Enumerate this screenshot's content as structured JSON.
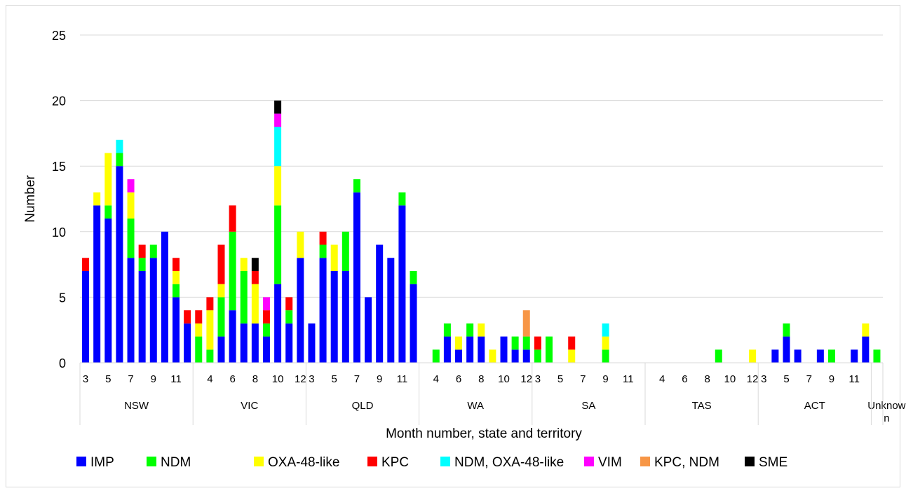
{
  "chart_data": {
    "type": "bar",
    "stacked": true,
    "ylabel": "Number",
    "xlabel": "Month number, state and territory",
    "ylim": [
      0,
      25
    ],
    "yticks": [
      0,
      5,
      10,
      15,
      20,
      25
    ],
    "grid": true,
    "legend_position": "bottom",
    "series": [
      {
        "name": "IMP",
        "color": "#0000ff"
      },
      {
        "name": "NDM",
        "color": "#00ff00"
      },
      {
        "name": "OXA-48-like",
        "color": "#ffff00"
      },
      {
        "name": "KPC",
        "color": "#ff0000"
      },
      {
        "name": "NDM, OXA-48-like",
        "color": "#00ffff"
      },
      {
        "name": "VIM",
        "color": "#ff00ff"
      },
      {
        "name": "KPC, NDM",
        "color": "#f79646"
      },
      {
        "name": "SME",
        "color": "#000000"
      }
    ],
    "groups": [
      {
        "name": "NSW",
        "tick_labels": [
          "3",
          "",
          "5",
          "",
          "7",
          "",
          "9",
          "",
          "11",
          ""
        ],
        "bars": [
          [
            7,
            0,
            0,
            1,
            0,
            0,
            0,
            0
          ],
          [
            12,
            0,
            1,
            0,
            0,
            0,
            0,
            0
          ],
          [
            11,
            1,
            4,
            0,
            0,
            0,
            0,
            0
          ],
          [
            15,
            1,
            0,
            0,
            1,
            0,
            0,
            0
          ],
          [
            8,
            3,
            2,
            0,
            0,
            1,
            0,
            0
          ],
          [
            7,
            1,
            0,
            1,
            0,
            0,
            0,
            0
          ],
          [
            8,
            1,
            0,
            0,
            0,
            0,
            0,
            0
          ],
          [
            10,
            0,
            0,
            0,
            0,
            0,
            0,
            0
          ],
          [
            5,
            1,
            1,
            1,
            0,
            0,
            0,
            0
          ],
          [
            3,
            0,
            0,
            1,
            0,
            0,
            0,
            0
          ]
        ]
      },
      {
        "name": "VIC",
        "tick_labels": [
          "",
          "4",
          "",
          "6",
          "",
          "8",
          "",
          "10",
          "",
          "12"
        ],
        "bars": [
          [
            0,
            2,
            1,
            1,
            0,
            0,
            0,
            0
          ],
          [
            0,
            1,
            3,
            1,
            0,
            0,
            0,
            0
          ],
          [
            2,
            3,
            1,
            3,
            0,
            0,
            0,
            0
          ],
          [
            4,
            6,
            0,
            2,
            0,
            0,
            0,
            0
          ],
          [
            3,
            4,
            1,
            0,
            0,
            0,
            0,
            0
          ],
          [
            3,
            0,
            3,
            1,
            0,
            0,
            0,
            1
          ],
          [
            2,
            1,
            0,
            1,
            0,
            1,
            0,
            0
          ],
          [
            6,
            6,
            3,
            0,
            3,
            1,
            0,
            1
          ],
          [
            3,
            1,
            0,
            1,
            0,
            0,
            0,
            0
          ],
          [
            8,
            0,
            2,
            0,
            0,
            0,
            0,
            0
          ]
        ]
      },
      {
        "name": "QLD",
        "tick_labels": [
          "3",
          "",
          "5",
          "",
          "7",
          "",
          "9",
          "",
          "11",
          ""
        ],
        "bars": [
          [
            3,
            0,
            0,
            0,
            0,
            0,
            0,
            0
          ],
          [
            8,
            1,
            0,
            1,
            0,
            0,
            0,
            0
          ],
          [
            7,
            0,
            2,
            0,
            0,
            0,
            0,
            0
          ],
          [
            7,
            3,
            0,
            0,
            0,
            0,
            0,
            0
          ],
          [
            13,
            1,
            0,
            0,
            0,
            0,
            0,
            0
          ],
          [
            5,
            0,
            0,
            0,
            0,
            0,
            0,
            0
          ],
          [
            9,
            0,
            0,
            0,
            0,
            0,
            0,
            0
          ],
          [
            8,
            0,
            0,
            0,
            0,
            0,
            0,
            0
          ],
          [
            12,
            1,
            0,
            0,
            0,
            0,
            0,
            0
          ],
          [
            6,
            1,
            0,
            0,
            0,
            0,
            0,
            0
          ]
        ]
      },
      {
        "name": "WA",
        "tick_labels": [
          "",
          "4",
          "",
          "6",
          "",
          "8",
          "",
          "10",
          "",
          "12"
        ],
        "bars": [
          [
            0,
            0,
            0,
            0,
            0,
            0,
            0,
            0
          ],
          [
            0,
            1,
            0,
            0,
            0,
            0,
            0,
            0
          ],
          [
            2,
            1,
            0,
            0,
            0,
            0,
            0,
            0
          ],
          [
            1,
            0,
            1,
            0,
            0,
            0,
            0,
            0
          ],
          [
            2,
            1,
            0,
            0,
            0,
            0,
            0,
            0
          ],
          [
            2,
            0,
            1,
            0,
            0,
            0,
            0,
            0
          ],
          [
            0,
            0,
            1,
            0,
            0,
            0,
            0,
            0
          ],
          [
            2,
            0,
            0,
            0,
            0,
            0,
            0,
            0
          ],
          [
            1,
            1,
            0,
            0,
            0,
            0,
            0,
            0
          ],
          [
            1,
            1,
            0,
            0,
            0,
            0,
            2,
            0
          ]
        ]
      },
      {
        "name": "SA",
        "tick_labels": [
          "3",
          "",
          "5",
          "",
          "7",
          "",
          "9",
          "",
          "11",
          ""
        ],
        "bars": [
          [
            0,
            1,
            0,
            1,
            0,
            0,
            0,
            0
          ],
          [
            0,
            2,
            0,
            0,
            0,
            0,
            0,
            0
          ],
          [
            0,
            0,
            0,
            0,
            0,
            0,
            0,
            0
          ],
          [
            0,
            0,
            1,
            1,
            0,
            0,
            0,
            0
          ],
          [
            0,
            0,
            0,
            0,
            0,
            0,
            0,
            0
          ],
          [
            0,
            0,
            0,
            0,
            0,
            0,
            0,
            0
          ],
          [
            0,
            1,
            1,
            0,
            1,
            0,
            0,
            0
          ],
          [
            0,
            0,
            0,
            0,
            0,
            0,
            0,
            0
          ],
          [
            0,
            0,
            0,
            0,
            0,
            0,
            0,
            0
          ],
          [
            0,
            0,
            0,
            0,
            0,
            0,
            0,
            0
          ]
        ]
      },
      {
        "name": "TAS",
        "tick_labels": [
          "",
          "4",
          "",
          "6",
          "",
          "8",
          "",
          "10",
          "",
          "12"
        ],
        "bars": [
          [
            0,
            0,
            0,
            0,
            0,
            0,
            0,
            0
          ],
          [
            0,
            0,
            0,
            0,
            0,
            0,
            0,
            0
          ],
          [
            0,
            0,
            0,
            0,
            0,
            0,
            0,
            0
          ],
          [
            0,
            0,
            0,
            0,
            0,
            0,
            0,
            0
          ],
          [
            0,
            0,
            0,
            0,
            0,
            0,
            0,
            0
          ],
          [
            0,
            0,
            0,
            0,
            0,
            0,
            0,
            0
          ],
          [
            0,
            1,
            0,
            0,
            0,
            0,
            0,
            0
          ],
          [
            0,
            0,
            0,
            0,
            0,
            0,
            0,
            0
          ],
          [
            0,
            0,
            0,
            0,
            0,
            0,
            0,
            0
          ],
          [
            0,
            0,
            1,
            0,
            0,
            0,
            0,
            0
          ]
        ]
      },
      {
        "name": "ACT",
        "tick_labels": [
          "3",
          "",
          "5",
          "",
          "7",
          "",
          "9",
          "",
          "11",
          ""
        ],
        "bars": [
          [
            0,
            0,
            0,
            0,
            0,
            0,
            0,
            0
          ],
          [
            1,
            0,
            0,
            0,
            0,
            0,
            0,
            0
          ],
          [
            2,
            1,
            0,
            0,
            0,
            0,
            0,
            0
          ],
          [
            1,
            0,
            0,
            0,
            0,
            0,
            0,
            0
          ],
          [
            0,
            0,
            0,
            0,
            0,
            0,
            0,
            0
          ],
          [
            1,
            0,
            0,
            0,
            0,
            0,
            0,
            0
          ],
          [
            0,
            1,
            0,
            0,
            0,
            0,
            0,
            0
          ],
          [
            0,
            0,
            0,
            0,
            0,
            0,
            0,
            0
          ],
          [
            1,
            0,
            0,
            0,
            0,
            0,
            0,
            0
          ],
          [
            2,
            0,
            1,
            0,
            0,
            0,
            0,
            0
          ]
        ]
      },
      {
        "name": "Unknow\nn",
        "tick_labels": [
          ""
        ],
        "bars": [
          [
            0,
            1,
            0,
            0,
            0,
            0,
            0,
            0
          ]
        ]
      }
    ]
  }
}
